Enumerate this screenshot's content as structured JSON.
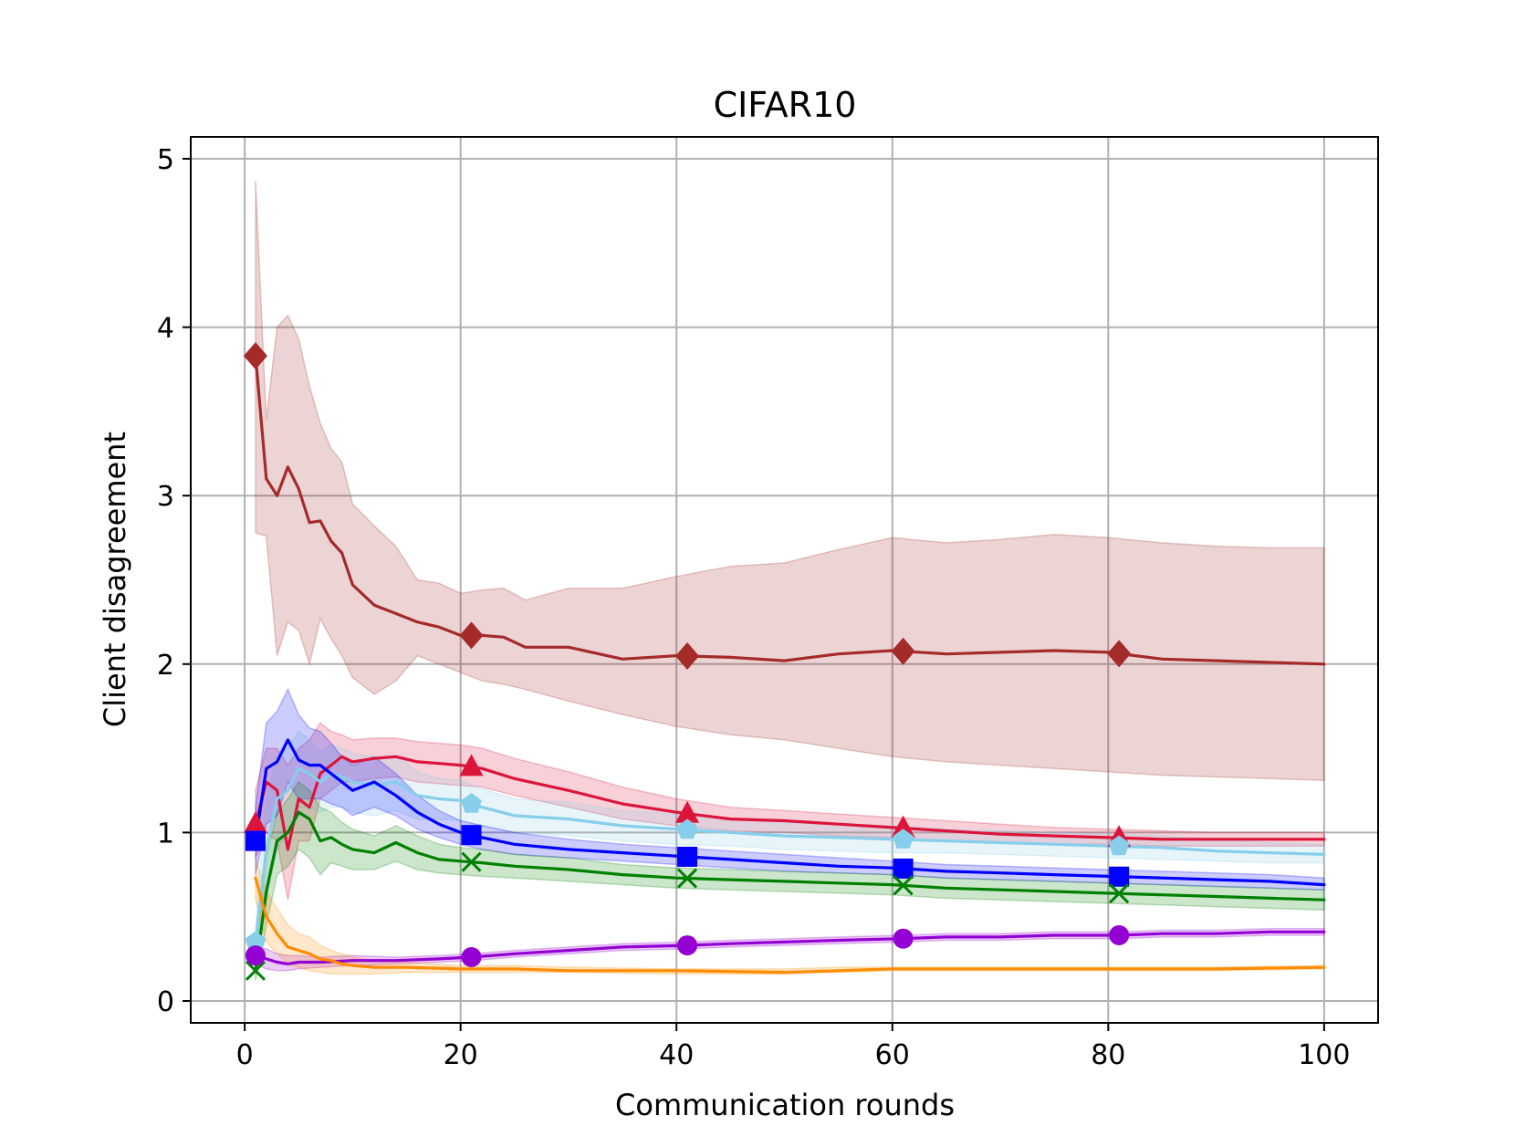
{
  "chart_data": {
    "type": "line",
    "title": "CIFAR10",
    "xlabel": "Communication rounds",
    "ylabel": "Client disagreement",
    "xlim": [
      -5,
      105
    ],
    "ylim": [
      -0.13,
      5.13
    ],
    "xticks": [
      0,
      20,
      40,
      60,
      80,
      100
    ],
    "yticks": [
      0,
      1,
      2,
      3,
      4,
      5
    ],
    "grid": true,
    "legend": "none",
    "series": [
      {
        "name": "brown-diamond",
        "color": "#a52a2a",
        "marker": "diamond",
        "x": [
          1,
          2,
          3,
          4,
          5,
          6,
          7,
          8,
          9,
          10,
          12,
          14,
          16,
          18,
          20,
          22,
          24,
          26,
          30,
          35,
          40,
          45,
          50,
          55,
          60,
          65,
          70,
          75,
          80,
          85,
          90,
          95,
          100
        ],
        "values": [
          3.83,
          3.1,
          3.0,
          3.17,
          3.04,
          2.84,
          2.85,
          2.73,
          2.66,
          2.47,
          2.35,
          2.3,
          2.25,
          2.22,
          2.17,
          2.17,
          2.16,
          2.1,
          2.1,
          2.03,
          2.05,
          2.04,
          2.02,
          2.06,
          2.08,
          2.06,
          2.07,
          2.08,
          2.07,
          2.03,
          2.02,
          2.01,
          2.0
        ],
        "lower": [
          2.78,
          2.76,
          2.05,
          2.25,
          2.2,
          2.0,
          2.27,
          2.15,
          2.05,
          1.92,
          1.82,
          1.9,
          2.05,
          2.0,
          1.95,
          1.9,
          1.88,
          1.85,
          1.78,
          1.7,
          1.63,
          1.58,
          1.55,
          1.5,
          1.45,
          1.42,
          1.4,
          1.38,
          1.36,
          1.34,
          1.33,
          1.32,
          1.31
        ],
        "upper": [
          4.87,
          3.45,
          4.0,
          4.07,
          3.93,
          3.65,
          3.43,
          3.28,
          3.2,
          2.95,
          2.82,
          2.7,
          2.5,
          2.48,
          2.42,
          2.44,
          2.45,
          2.38,
          2.45,
          2.45,
          2.52,
          2.58,
          2.6,
          2.68,
          2.75,
          2.72,
          2.74,
          2.77,
          2.75,
          2.72,
          2.7,
          2.69,
          2.69
        ],
        "markers": [
          1,
          21,
          41,
          61,
          81
        ]
      },
      {
        "name": "crimson-triangle",
        "color": "#dc143c",
        "marker": "triangle",
        "x": [
          1,
          2,
          3,
          4,
          5,
          6,
          7,
          8,
          9,
          10,
          12,
          14,
          16,
          18,
          20,
          22,
          25,
          30,
          35,
          40,
          45,
          50,
          55,
          60,
          65,
          70,
          75,
          80,
          85,
          90,
          95,
          100
        ],
        "values": [
          1.05,
          1.3,
          1.25,
          0.9,
          1.2,
          1.15,
          1.35,
          1.4,
          1.45,
          1.42,
          1.44,
          1.45,
          1.42,
          1.41,
          1.4,
          1.38,
          1.32,
          1.25,
          1.17,
          1.12,
          1.08,
          1.07,
          1.05,
          1.03,
          1.01,
          0.99,
          0.98,
          0.97,
          0.96,
          0.96,
          0.96,
          0.96
        ],
        "lower": [
          0.85,
          1.0,
          0.95,
          0.6,
          0.95,
          0.95,
          1.2,
          1.25,
          1.3,
          1.3,
          1.32,
          1.33,
          1.3,
          1.29,
          1.28,
          1.27,
          1.22,
          1.15,
          1.08,
          1.04,
          1.01,
          1.0,
          0.98,
          0.97,
          0.95,
          0.94,
          0.93,
          0.93,
          0.92,
          0.92,
          0.92,
          0.92
        ],
        "upper": [
          1.25,
          1.5,
          1.5,
          1.4,
          1.5,
          1.55,
          1.65,
          1.6,
          1.58,
          1.55,
          1.56,
          1.56,
          1.54,
          1.53,
          1.52,
          1.5,
          1.44,
          1.36,
          1.27,
          1.2,
          1.15,
          1.13,
          1.11,
          1.09,
          1.07,
          1.05,
          1.03,
          1.02,
          1.01,
          1.0,
          1.0,
          1.0
        ],
        "markers": [
          1,
          21,
          41,
          61,
          81
        ]
      },
      {
        "name": "skyblue-pentagon",
        "color": "#87ceeb",
        "marker": "pentagon",
        "x": [
          1,
          2,
          3,
          4,
          5,
          6,
          7,
          8,
          9,
          10,
          12,
          14,
          16,
          18,
          20,
          22,
          25,
          30,
          35,
          40,
          45,
          50,
          55,
          60,
          65,
          70,
          75,
          80,
          85,
          90,
          95,
          100
        ],
        "values": [
          0.35,
          0.9,
          1.2,
          1.25,
          1.38,
          1.35,
          1.3,
          1.35,
          1.33,
          1.3,
          1.28,
          1.3,
          1.22,
          1.2,
          1.19,
          1.15,
          1.1,
          1.08,
          1.04,
          1.02,
          1.0,
          0.98,
          0.97,
          0.96,
          0.95,
          0.94,
          0.93,
          0.92,
          0.91,
          0.89,
          0.88,
          0.87
        ],
        "lower": [
          0.25,
          0.6,
          0.9,
          1.0,
          1.15,
          1.15,
          1.12,
          1.15,
          1.15,
          1.12,
          1.1,
          1.13,
          1.08,
          1.08,
          1.07,
          1.04,
          1.0,
          0.98,
          0.95,
          0.93,
          0.92,
          0.9,
          0.89,
          0.88,
          0.88,
          0.87,
          0.86,
          0.85,
          0.84,
          0.83,
          0.82,
          0.82
        ],
        "upper": [
          0.45,
          1.2,
          1.45,
          1.5,
          1.6,
          1.55,
          1.48,
          1.52,
          1.5,
          1.47,
          1.45,
          1.46,
          1.36,
          1.32,
          1.31,
          1.26,
          1.2,
          1.18,
          1.13,
          1.11,
          1.08,
          1.06,
          1.05,
          1.04,
          1.02,
          1.01,
          1.0,
          0.99,
          0.98,
          0.96,
          0.94,
          0.93
        ],
        "markers": [
          1,
          21,
          41,
          61,
          81
        ]
      },
      {
        "name": "blue-square",
        "color": "#0000ff",
        "marker": "square",
        "x": [
          1,
          2,
          3,
          4,
          5,
          6,
          7,
          8,
          9,
          10,
          12,
          14,
          16,
          18,
          20,
          22,
          25,
          30,
          35,
          40,
          45,
          50,
          55,
          60,
          65,
          70,
          75,
          80,
          85,
          90,
          95,
          100
        ],
        "values": [
          0.95,
          1.38,
          1.42,
          1.55,
          1.43,
          1.4,
          1.4,
          1.35,
          1.3,
          1.25,
          1.3,
          1.22,
          1.12,
          1.05,
          1.0,
          0.97,
          0.93,
          0.9,
          0.88,
          0.86,
          0.84,
          0.82,
          0.8,
          0.79,
          0.77,
          0.76,
          0.75,
          0.74,
          0.73,
          0.72,
          0.71,
          0.69
        ],
        "lower": [
          0.75,
          1.05,
          1.1,
          1.3,
          1.2,
          1.2,
          1.2,
          1.17,
          1.15,
          1.1,
          1.15,
          1.1,
          1.02,
          0.97,
          0.93,
          0.9,
          0.87,
          0.85,
          0.83,
          0.81,
          0.79,
          0.77,
          0.76,
          0.75,
          0.73,
          0.72,
          0.71,
          0.7,
          0.69,
          0.68,
          0.67,
          0.66
        ],
        "upper": [
          1.15,
          1.65,
          1.72,
          1.85,
          1.7,
          1.62,
          1.6,
          1.53,
          1.45,
          1.4,
          1.45,
          1.35,
          1.22,
          1.13,
          1.07,
          1.04,
          1.0,
          0.96,
          0.93,
          0.91,
          0.89,
          0.87,
          0.85,
          0.83,
          0.81,
          0.8,
          0.79,
          0.78,
          0.77,
          0.76,
          0.75,
          0.73
        ],
        "markers": [
          1,
          21,
          41,
          61,
          81
        ]
      },
      {
        "name": "green-x",
        "color": "#008000",
        "marker": "x",
        "x": [
          1,
          2,
          3,
          4,
          5,
          6,
          7,
          8,
          9,
          10,
          12,
          14,
          16,
          18,
          20,
          22,
          25,
          30,
          35,
          40,
          45,
          50,
          55,
          60,
          65,
          70,
          75,
          80,
          85,
          90,
          95,
          100
        ],
        "values": [
          0.18,
          0.65,
          0.95,
          1.0,
          1.12,
          1.08,
          0.95,
          0.97,
          0.93,
          0.9,
          0.88,
          0.94,
          0.88,
          0.84,
          0.83,
          0.82,
          0.8,
          0.78,
          0.75,
          0.73,
          0.72,
          0.71,
          0.7,
          0.69,
          0.67,
          0.66,
          0.65,
          0.64,
          0.63,
          0.62,
          0.61,
          0.6
        ],
        "lower": [
          0.12,
          0.45,
          0.75,
          0.8,
          0.9,
          0.85,
          0.75,
          0.82,
          0.8,
          0.78,
          0.78,
          0.83,
          0.78,
          0.76,
          0.75,
          0.74,
          0.73,
          0.71,
          0.69,
          0.67,
          0.66,
          0.65,
          0.64,
          0.63,
          0.61,
          0.6,
          0.59,
          0.58,
          0.57,
          0.56,
          0.55,
          0.54
        ],
        "upper": [
          0.25,
          0.85,
          1.12,
          1.2,
          1.3,
          1.25,
          1.15,
          1.12,
          1.06,
          1.02,
          0.98,
          1.04,
          0.98,
          0.93,
          0.91,
          0.9,
          0.87,
          0.85,
          0.81,
          0.79,
          0.78,
          0.77,
          0.76,
          0.75,
          0.73,
          0.72,
          0.71,
          0.7,
          0.69,
          0.68,
          0.67,
          0.66
        ],
        "markers": [
          1,
          21,
          41,
          61,
          81
        ]
      },
      {
        "name": "purple-circle",
        "color": "#9400d3",
        "marker": "circle",
        "x": [
          1,
          2,
          3,
          4,
          5,
          7,
          10,
          14,
          18,
          21,
          25,
          30,
          35,
          41,
          45,
          50,
          55,
          61,
          65,
          70,
          75,
          81,
          85,
          90,
          95,
          100
        ],
        "values": [
          0.27,
          0.25,
          0.23,
          0.22,
          0.23,
          0.23,
          0.24,
          0.24,
          0.25,
          0.26,
          0.28,
          0.3,
          0.32,
          0.33,
          0.34,
          0.35,
          0.36,
          0.37,
          0.38,
          0.38,
          0.39,
          0.39,
          0.4,
          0.4,
          0.41,
          0.41
        ],
        "lower": [
          0.22,
          0.19,
          0.18,
          0.18,
          0.19,
          0.2,
          0.21,
          0.22,
          0.23,
          0.24,
          0.26,
          0.28,
          0.3,
          0.31,
          0.32,
          0.33,
          0.34,
          0.35,
          0.36,
          0.36,
          0.37,
          0.37,
          0.38,
          0.38,
          0.39,
          0.39
        ],
        "upper": [
          0.32,
          0.31,
          0.28,
          0.27,
          0.27,
          0.26,
          0.27,
          0.26,
          0.27,
          0.28,
          0.3,
          0.32,
          0.34,
          0.35,
          0.36,
          0.37,
          0.38,
          0.39,
          0.4,
          0.4,
          0.41,
          0.41,
          0.42,
          0.42,
          0.43,
          0.43
        ],
        "markers": [
          1,
          21,
          41,
          61,
          81
        ]
      },
      {
        "name": "orange",
        "color": "#ff8c00",
        "marker": "none",
        "x": [
          1,
          2,
          3,
          4,
          5,
          6,
          7,
          8,
          9,
          10,
          12,
          15,
          20,
          25,
          30,
          40,
          50,
          55,
          60,
          70,
          80,
          90,
          100
        ],
        "values": [
          0.73,
          0.5,
          0.4,
          0.32,
          0.3,
          0.28,
          0.25,
          0.24,
          0.22,
          0.21,
          0.2,
          0.2,
          0.19,
          0.19,
          0.18,
          0.18,
          0.17,
          0.18,
          0.19,
          0.19,
          0.19,
          0.19,
          0.2
        ],
        "lower": [
          0.6,
          0.35,
          0.28,
          0.22,
          0.2,
          0.18,
          0.17,
          0.16,
          0.16,
          0.16,
          0.16,
          0.17,
          0.17,
          0.17,
          0.17,
          0.16,
          0.16,
          0.17,
          0.18,
          0.18,
          0.18,
          0.18,
          0.19
        ],
        "upper": [
          0.85,
          0.65,
          0.55,
          0.45,
          0.4,
          0.38,
          0.33,
          0.3,
          0.28,
          0.26,
          0.24,
          0.23,
          0.21,
          0.21,
          0.2,
          0.19,
          0.19,
          0.2,
          0.2,
          0.2,
          0.2,
          0.2,
          0.21
        ],
        "markers": []
      }
    ]
  }
}
